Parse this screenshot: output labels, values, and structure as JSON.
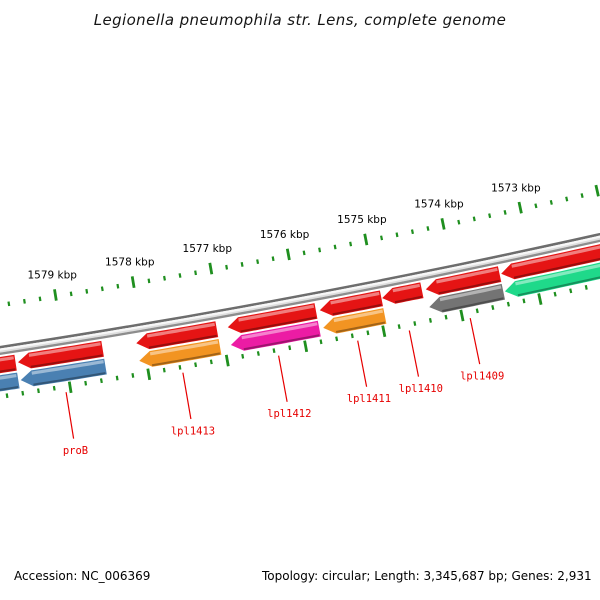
{
  "title": "Legionella pneumophila str. Lens, complete genome",
  "status_bar": {
    "accession": "Accession: NC_006369",
    "details": "Topology: circular; Length: 3,345,687 bp; Genes: 2,931"
  },
  "chart_data": {
    "type": "genome-map-arc",
    "title": "Legionella pneumophila str. Lens, complete genome",
    "unit": "kbp",
    "orientation": "coordinates increase to the left; arrows point toward higher coordinate",
    "visible_range_kbp": [
      1571.8,
      1580.2
    ],
    "ticks": {
      "minor_interval_kbp": 0.2,
      "major_interval_kbp": 1,
      "color": "#1f8f1f",
      "labeled_majors_kbp": [
        1573,
        1574,
        1575,
        1576,
        1577,
        1578,
        1579
      ],
      "label_suffix": " kbp",
      "label_color": "#000000",
      "rows": [
        "above backbone (with labels)",
        "below gene rings"
      ]
    },
    "backbone": {
      "style": "gray 3D tube",
      "stripe_colors": [
        "#6d6d6d",
        "#f7f7f7",
        "#dedede",
        "#8d8d8d"
      ]
    },
    "gene_ring_color": "#e51414",
    "gene_label_color": "#e60000",
    "genes": [
      {
        "label": "",
        "start_kbp": 1579.63,
        "end_kbp": 1580.4,
        "category_color": "#4a80b2",
        "rings": [
          "gene",
          "category"
        ]
      },
      {
        "label": "proB",
        "start_kbp": 1578.52,
        "end_kbp": 1579.6,
        "category_color": "#4a80b2",
        "rings": [
          "gene",
          "category"
        ]
      },
      {
        "label": "lpl1413",
        "start_kbp": 1577.06,
        "end_kbp": 1578.09,
        "category_color": "#f29422",
        "rings": [
          "gene",
          "category"
        ]
      },
      {
        "label": "lpl1412",
        "start_kbp": 1575.79,
        "end_kbp": 1576.92,
        "category_color": "#ec1ca4",
        "rings": [
          "gene",
          "category"
        ]
      },
      {
        "label": "lpl1411",
        "start_kbp": 1574.95,
        "end_kbp": 1575.74,
        "category_color": "#f29422",
        "rings": [
          "gene",
          "category"
        ]
      },
      {
        "label": "lpl1410",
        "start_kbp": 1574.43,
        "end_kbp": 1574.94,
        "category_color": null,
        "rings": [
          "gene"
        ]
      },
      {
        "label": "lpl1409",
        "start_kbp": 1573.43,
        "end_kbp": 1574.38,
        "category_color": "#747474",
        "rings": [
          "gene",
          "category"
        ]
      },
      {
        "label": "",
        "start_kbp": 1571.85,
        "end_kbp": 1573.41,
        "category_color": "#1fd98a",
        "rings": [
          "gene",
          "category"
        ]
      }
    ]
  }
}
